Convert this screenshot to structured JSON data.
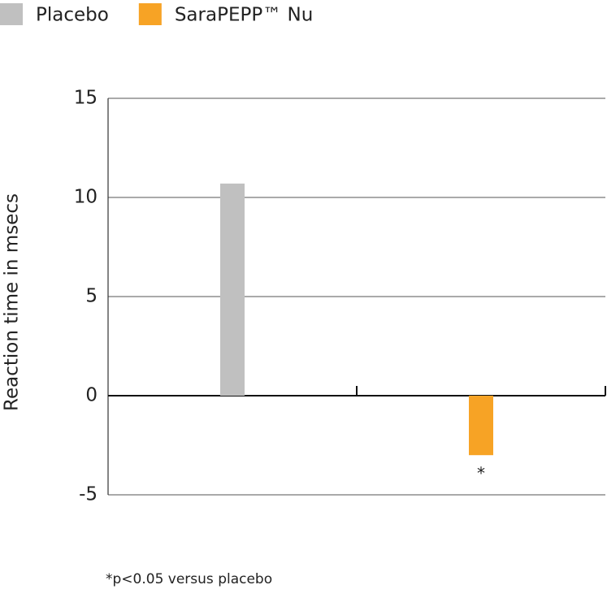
{
  "chart_data": {
    "type": "bar",
    "categories": [
      null,
      null
    ],
    "series": [
      {
        "name": "Placebo",
        "color": "#c0c0c0",
        "values": [
          10.7,
          null
        ]
      },
      {
        "name": "SaraPEPP™ Nu",
        "color": "#f7a325",
        "values": [
          null,
          -3
        ]
      }
    ],
    "ylabel": "Reaction time in msecs",
    "ylim": [
      -5,
      15
    ],
    "yticks": [
      -5,
      0,
      5,
      10,
      15
    ],
    "grid": true,
    "annotation": "*",
    "footnote": "*p<0.05 versus placebo"
  }
}
